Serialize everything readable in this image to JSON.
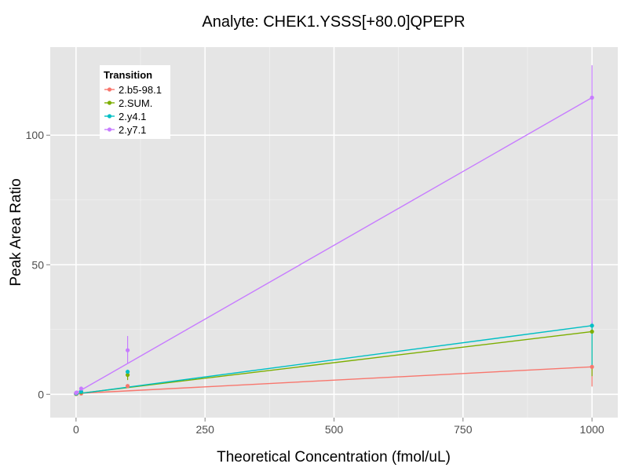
{
  "chart_data": {
    "type": "line",
    "title": "Analyte: CHEK1.YSSS[+80.0]QPEPR",
    "xlabel": "Theoretical Concentration (fmol/uL)",
    "ylabel": "Peak Area Ratio",
    "xlim": [
      -50,
      1050
    ],
    "ylim": [
      -9,
      134
    ],
    "x_ticks": [
      0,
      250,
      500,
      750,
      1000
    ],
    "y_ticks": [
      0,
      50,
      100
    ],
    "x_tick_labels": [
      "0",
      "250",
      "500",
      "750",
      "1000"
    ],
    "y_tick_labels": [
      "0",
      "50",
      "100"
    ],
    "grid": true,
    "legend": {
      "title": "Transition",
      "position": "top-left"
    },
    "series": [
      {
        "name": "2.b5-98.1",
        "color": "#F8766D",
        "fit": [
          [
            0,
            0.3
          ],
          [
            1000,
            10.6
          ]
        ],
        "points": [
          {
            "x": 0,
            "y": 0.1,
            "err": [
              0,
              0.3
            ]
          },
          {
            "x": 1,
            "y": 0.2,
            "err": [
              0.1,
              0.3
            ]
          },
          {
            "x": 10,
            "y": 0.3,
            "err": [
              0.2,
              0.5
            ]
          },
          {
            "x": 100,
            "y": 3.2,
            "err": [
              2.8,
              3.6
            ]
          },
          {
            "x": 1000,
            "y": 10.6,
            "err": [
              3,
              11
            ]
          }
        ]
      },
      {
        "name": "2.SUM.",
        "color": "#7CAE00",
        "fit": [
          [
            0,
            0.2
          ],
          [
            1000,
            24.2
          ]
        ],
        "points": [
          {
            "x": 0,
            "y": 0.2,
            "err": [
              0,
              0.4
            ]
          },
          {
            "x": 1,
            "y": 0.3,
            "err": [
              0.2,
              0.4
            ]
          },
          {
            "x": 10,
            "y": 0.8,
            "err": [
              0.5,
              1.1
            ]
          },
          {
            "x": 100,
            "y": 7.5,
            "err": [
              5.5,
              8.5
            ]
          },
          {
            "x": 1000,
            "y": 24.2,
            "err": [
              7,
              26
            ]
          }
        ]
      },
      {
        "name": "2.y4.1",
        "color": "#00BFC4",
        "fit": [
          [
            0,
            0.1
          ],
          [
            1000,
            26.5
          ]
        ],
        "points": [
          {
            "x": 0,
            "y": 0.3,
            "err": [
              0,
              0.5
            ]
          },
          {
            "x": 1,
            "y": 0.4,
            "err": [
              0.3,
              0.5
            ]
          },
          {
            "x": 10,
            "y": 1.0,
            "err": [
              0.7,
              1.3
            ]
          },
          {
            "x": 100,
            "y": 8.7,
            "err": [
              7.5,
              9.5
            ]
          },
          {
            "x": 1000,
            "y": 26.5,
            "err": [
              10,
              28
            ]
          }
        ]
      },
      {
        "name": "2.y7.1",
        "color": "#C77CFF",
        "fit": [
          [
            0,
            0.5
          ],
          [
            1000,
            114.5
          ]
        ],
        "points": [
          {
            "x": 0,
            "y": 0.5,
            "err": [
              0.2,
              0.8
            ]
          },
          {
            "x": 1,
            "y": 0.7,
            "err": [
              0.5,
              1.0
            ]
          },
          {
            "x": 10,
            "y": 2.2,
            "err": [
              1.8,
              2.6
            ]
          },
          {
            "x": 100,
            "y": 17,
            "err": [
              12,
              22.5
            ]
          },
          {
            "x": 1000,
            "y": 114.5,
            "err": [
              26,
              127
            ]
          }
        ]
      }
    ]
  }
}
